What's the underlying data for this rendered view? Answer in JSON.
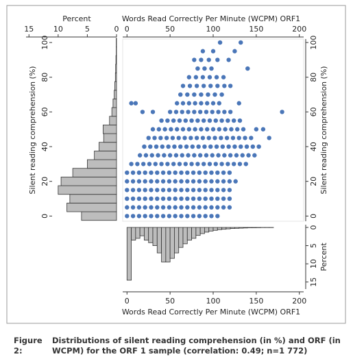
{
  "chart_data": [
    {
      "type": "scatter",
      "xlabel": "Words Read Correctly Per Minute (WCPM) ORF1",
      "ylabel": "Silent reading comprehension (%)",
      "color": "#4a76b8",
      "xlim": [
        -5,
        205
      ],
      "ylim": [
        -3,
        102
      ],
      "xticks": [
        0,
        50,
        100,
        150,
        200
      ],
      "yticks": [
        0,
        20,
        40,
        60,
        80,
        100
      ],
      "x": [
        0,
        7,
        14,
        21,
        28,
        35,
        42,
        49,
        56,
        63,
        70,
        77,
        84,
        91,
        98,
        105,
        0,
        7,
        14,
        21,
        28,
        35,
        42,
        49,
        56,
        63,
        70,
        77,
        84,
        91,
        98,
        105,
        112,
        119,
        0,
        7,
        14,
        21,
        28,
        35,
        42,
        49,
        56,
        63,
        70,
        77,
        84,
        91,
        98,
        105,
        112,
        119,
        0,
        7,
        14,
        21,
        28,
        35,
        42,
        49,
        56,
        63,
        70,
        77,
        84,
        91,
        98,
        105,
        112,
        119,
        0,
        7,
        14,
        21,
        28,
        35,
        42,
        49,
        56,
        63,
        70,
        77,
        84,
        91,
        98,
        105,
        112,
        119,
        126,
        0,
        7,
        14,
        21,
        28,
        35,
        42,
        49,
        56,
        63,
        70,
        77,
        84,
        91,
        98,
        105,
        112,
        119,
        5,
        12,
        19,
        26,
        33,
        40,
        47,
        54,
        61,
        68,
        75,
        82,
        89,
        96,
        103,
        110,
        117,
        124,
        131,
        138,
        15,
        22,
        29,
        36,
        43,
        50,
        57,
        64,
        71,
        78,
        85,
        92,
        99,
        106,
        113,
        120,
        127,
        134,
        141,
        148,
        20,
        27,
        34,
        41,
        48,
        55,
        62,
        69,
        76,
        83,
        90,
        97,
        104,
        111,
        118,
        125,
        132,
        139,
        146,
        153,
        25,
        32,
        39,
        46,
        53,
        60,
        67,
        74,
        81,
        88,
        95,
        102,
        109,
        116,
        123,
        130,
        137,
        144,
        165,
        30,
        37,
        44,
        51,
        58,
        65,
        72,
        79,
        86,
        93,
        100,
        107,
        114,
        121,
        128,
        135,
        150,
        158,
        40,
        47,
        54,
        61,
        68,
        75,
        82,
        89,
        96,
        103,
        110,
        117,
        124,
        131,
        18,
        30,
        50,
        57,
        64,
        71,
        78,
        85,
        92,
        99,
        106,
        113,
        120,
        180,
        5,
        10,
        58,
        65,
        72,
        79,
        86,
        93,
        100,
        107,
        130,
        62,
        70,
        78,
        86,
        94,
        102,
        110,
        65,
        73,
        81,
        89,
        97,
        105,
        113,
        120,
        72,
        80,
        88,
        96,
        104,
        112,
        82,
        90,
        98,
        140,
        78,
        86,
        95,
        105,
        118,
        88,
        100,
        125,
        108,
        132
      ],
      "values": [
        0,
        0,
        0,
        0,
        0,
        0,
        0,
        0,
        0,
        0,
        0,
        0,
        0,
        0,
        0,
        0,
        5,
        5,
        5,
        5,
        5,
        5,
        5,
        5,
        5,
        5,
        5,
        5,
        5,
        5,
        5,
        5,
        5,
        5,
        10,
        10,
        10,
        10,
        10,
        10,
        10,
        10,
        10,
        10,
        10,
        10,
        10,
        10,
        10,
        10,
        10,
        10,
        15,
        15,
        15,
        15,
        15,
        15,
        15,
        15,
        15,
        15,
        15,
        15,
        15,
        15,
        15,
        15,
        15,
        15,
        20,
        20,
        20,
        20,
        20,
        20,
        20,
        20,
        20,
        20,
        20,
        20,
        20,
        20,
        20,
        20,
        20,
        20,
        20,
        25,
        25,
        25,
        25,
        25,
        25,
        25,
        25,
        25,
        25,
        25,
        25,
        25,
        25,
        25,
        25,
        25,
        25,
        30,
        30,
        30,
        30,
        30,
        30,
        30,
        30,
        30,
        30,
        30,
        30,
        30,
        30,
        30,
        30,
        30,
        30,
        30,
        30,
        35,
        35,
        35,
        35,
        35,
        35,
        35,
        35,
        35,
        35,
        35,
        35,
        35,
        35,
        35,
        35,
        35,
        35,
        35,
        35,
        40,
        40,
        40,
        40,
        40,
        40,
        40,
        40,
        40,
        40,
        40,
        40,
        40,
        40,
        40,
        40,
        40,
        40,
        40,
        40,
        45,
        45,
        45,
        45,
        45,
        45,
        45,
        45,
        45,
        45,
        45,
        45,
        45,
        45,
        45,
        45,
        45,
        45,
        45,
        50,
        50,
        50,
        50,
        50,
        50,
        50,
        50,
        50,
        50,
        50,
        50,
        50,
        50,
        50,
        50,
        50,
        50,
        55,
        55,
        55,
        55,
        55,
        55,
        55,
        55,
        55,
        55,
        55,
        55,
        55,
        55,
        60,
        60,
        60,
        60,
        60,
        60,
        60,
        60,
        60,
        60,
        60,
        60,
        60,
        60,
        65,
        65,
        65,
        65,
        65,
        65,
        65,
        65,
        65,
        65,
        65,
        70,
        70,
        70,
        70,
        70,
        70,
        70,
        75,
        75,
        75,
        75,
        75,
        75,
        75,
        75,
        80,
        80,
        80,
        80,
        80,
        80,
        85,
        85,
        85,
        85,
        90,
        90,
        90,
        90,
        90,
        95,
        95,
        95,
        100,
        100
      ]
    },
    {
      "type": "histogram",
      "orientation": "horizontal",
      "xlabel": "Percent",
      "ylabel": "Silent reading comprehension (%)",
      "color": "#bdbdbd",
      "xlim": [
        0,
        15.5
      ],
      "xticks": [
        15,
        10,
        5,
        0
      ],
      "ylim": [
        -3,
        102
      ],
      "yticks": [
        0,
        20,
        40,
        60,
        80,
        100
      ],
      "bins": [
        -2.5,
        2.5,
        7.5,
        12.5,
        17.5,
        22.5,
        27.5,
        32.5,
        37.5,
        42.5,
        47.5,
        52.5,
        57.5,
        62.5,
        67.5,
        72.5,
        77.5,
        82.5,
        87.5,
        92.5,
        97.5,
        102.5
      ],
      "values": [
        6,
        8.5,
        8,
        10,
        9.5,
        7.5,
        5,
        3.8,
        3,
        2.2,
        2.3,
        1.2,
        0.8,
        0.6,
        0.4,
        0.3,
        0.2,
        0.15,
        0.1,
        0.05,
        0.05
      ]
    },
    {
      "type": "histogram",
      "orientation": "vertical",
      "xlabel": "Words Read Correctly Per Minute (WCPM) ORF1",
      "ylabel": "Percent",
      "color": "#bdbdbd",
      "xlim": [
        -5,
        205
      ],
      "xticks": [
        0,
        50,
        100,
        150,
        200
      ],
      "ylim": [
        0,
        16
      ],
      "yticks": [
        0,
        5,
        10,
        15
      ],
      "bins": [
        0,
        5,
        10,
        15,
        20,
        25,
        30,
        35,
        40,
        45,
        50,
        55,
        60,
        65,
        70,
        75,
        80,
        85,
        90,
        95,
        100,
        105,
        110,
        115,
        120,
        125,
        130,
        135,
        140,
        145,
        150,
        155,
        160,
        165,
        170
      ],
      "values": [
        14.5,
        3.5,
        3,
        2.3,
        3.5,
        4.2,
        5,
        7,
        9.5,
        9.5,
        8.5,
        7,
        5.5,
        4.5,
        3.5,
        3,
        2.2,
        1.7,
        1.3,
        1,
        0.8,
        0.6,
        0.5,
        0.4,
        0.3,
        0.25,
        0.2,
        0.15,
        0.1,
        0.1,
        0.08,
        0.05,
        0.05,
        0.05
      ]
    }
  ],
  "caption": {
    "label": "Figure 2:",
    "text": "Distributions of silent reading comprehension (in %) and ORF (in WCPM) for the ORF 1 sample (correlation: 0.49; n=1 772)"
  }
}
